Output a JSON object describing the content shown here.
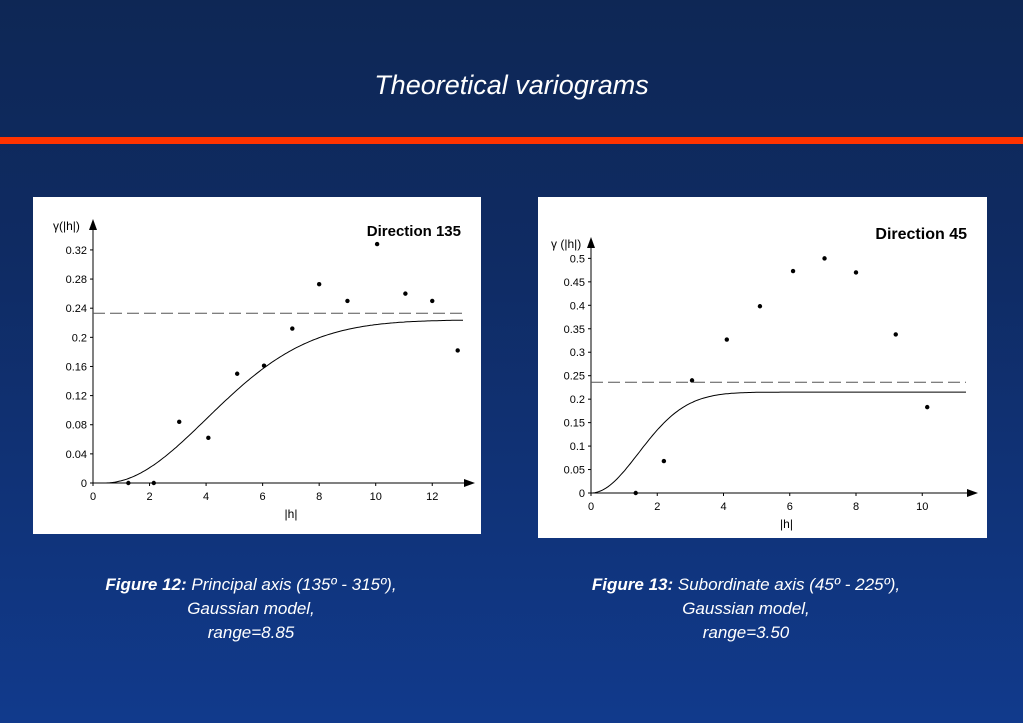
{
  "title": "Theoretical variograms",
  "colors": {
    "background": "#0f2b63",
    "title_rule": "#ff3300",
    "text": "#ffffff",
    "plot_ink": "#000000"
  },
  "captions": [
    {
      "lead": "Figure 12:",
      "line1": " Principal axis (135º - 315º),",
      "line2": "Gaussian model,",
      "line3": "range=8.85"
    },
    {
      "lead": "Figure 13:",
      "line1": " Subordinate axis (45º - 225º),",
      "line2": "Gaussian model,",
      "line3": "range=3.50"
    }
  ],
  "chart_data": [
    {
      "type": "scatter",
      "title": "Direction 135",
      "ylabel": "γ(|h|)",
      "xlabel": "|h|",
      "xlim": [
        0,
        13.3
      ],
      "ylim": [
        0,
        0.335
      ],
      "xticks": [
        0,
        2,
        4,
        6,
        8,
        10,
        12
      ],
      "yticks": [
        0,
        0.04,
        0.08,
        0.12,
        0.16,
        0.2,
        0.24,
        0.28,
        0.32
      ],
      "ytick_labels": [
        "0",
        "0.04",
        "0.08",
        "0.12",
        "0.16",
        "0.2",
        "0.24",
        "0.28",
        "0.32"
      ],
      "points": [
        {
          "x": 1.25,
          "y": 0.0
        },
        {
          "x": 2.15,
          "y": 0.0
        },
        {
          "x": 3.05,
          "y": 0.084
        },
        {
          "x": 4.08,
          "y": 0.062
        },
        {
          "x": 5.1,
          "y": 0.15
        },
        {
          "x": 6.05,
          "y": 0.161
        },
        {
          "x": 7.05,
          "y": 0.212
        },
        {
          "x": 8.0,
          "y": 0.273
        },
        {
          "x": 9.0,
          "y": 0.25
        },
        {
          "x": 10.05,
          "y": 0.328
        },
        {
          "x": 11.05,
          "y": 0.26
        },
        {
          "x": 12.0,
          "y": 0.25
        },
        {
          "x": 12.9,
          "y": 0.182
        }
      ],
      "sill": 0.233,
      "model": {
        "kind": "gaussian",
        "nugget_offset": 0.4,
        "sill": 0.224,
        "range": 8.85
      }
    },
    {
      "type": "scatter",
      "title": "Direction 45",
      "ylabel": "γ (|h|)",
      "xlabel": "|h|",
      "xlim": [
        0,
        11.2
      ],
      "ylim": [
        0,
        0.52
      ],
      "xticks": [
        0,
        2,
        4,
        6,
        8,
        10
      ],
      "yticks": [
        0,
        0.05,
        0.1,
        0.15,
        0.2,
        0.25,
        0.3,
        0.35,
        0.4,
        0.45,
        0.5
      ],
      "ytick_labels": [
        "0",
        "0.05",
        "0.1",
        "0.15",
        "0.2",
        "0.25",
        "0.3",
        "0.35",
        "0.4",
        "0.45",
        "0.5"
      ],
      "points": [
        {
          "x": 1.35,
          "y": 0.0
        },
        {
          "x": 2.2,
          "y": 0.068
        },
        {
          "x": 3.05,
          "y": 0.24
        },
        {
          "x": 4.1,
          "y": 0.327
        },
        {
          "x": 5.1,
          "y": 0.398
        },
        {
          "x": 6.1,
          "y": 0.473
        },
        {
          "x": 7.05,
          "y": 0.5
        },
        {
          "x": 8.0,
          "y": 0.47
        },
        {
          "x": 9.2,
          "y": 0.338
        },
        {
          "x": 10.15,
          "y": 0.183
        }
      ],
      "sill": 0.236,
      "model": {
        "kind": "gaussian",
        "nugget_offset": 0.0,
        "sill": 0.215,
        "range": 3.5
      }
    }
  ]
}
